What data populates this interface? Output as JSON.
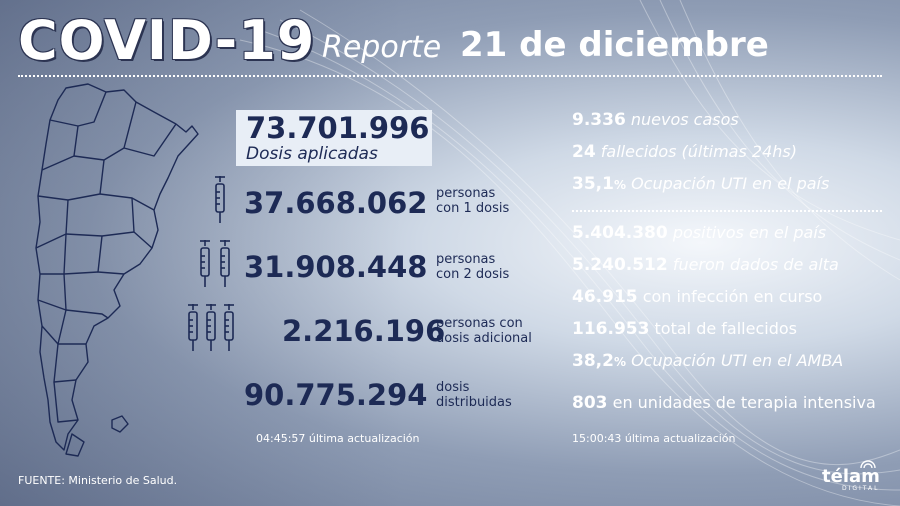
{
  "header": {
    "title": "COVID-19",
    "report_label": "Reporte",
    "date": "21 de diciembre"
  },
  "vaccination": {
    "total": {
      "value": "73.701.996",
      "label": "Dosis aplicadas"
    },
    "first_dose": {
      "value": "37.668.062",
      "label_line1": "personas",
      "label_line2": "con 1 dosis"
    },
    "second_dose": {
      "value": "31.908.448",
      "label_line1": "personas",
      "label_line2": "con 2 dosis"
    },
    "additional_dose": {
      "value": "2.216.196",
      "label_line1": "personas con",
      "label_line2": "dosis adicional"
    },
    "distributed": {
      "value": "90.775.294",
      "label_line1": "dosis",
      "label_line2": "distribuidas"
    },
    "updated": {
      "time": "04:45:57",
      "label": "última actualización"
    }
  },
  "daily": [
    {
      "value": "9.336",
      "label": "nuevos casos"
    },
    {
      "value": "24",
      "label": "fallecidos (últimas 24hs)"
    },
    {
      "value": "35,1",
      "suffix": "%",
      "label": "Ocupación UTI en el país"
    }
  ],
  "cumulative": [
    {
      "value": "5.404.380",
      "label": "positivos en el país"
    },
    {
      "value": "5.240.512",
      "label": "fueron dados de alta"
    },
    {
      "value": "46.915",
      "label": "con infección en curso"
    },
    {
      "value": "116.953",
      "label": "total de fallecidos"
    },
    {
      "value": "38,2",
      "suffix": "%",
      "label": "Ocupación UTI en el AMBA"
    },
    {
      "value": "803",
      "label": "en unidades de terapia intensiva"
    }
  ],
  "cases_updated": {
    "time": "15:00:43",
    "label": "última actualización"
  },
  "footer": {
    "source": "FUENTE: Ministerio de Salud."
  },
  "logo": {
    "name": "télam",
    "sub": "DIGITAL"
  },
  "icons": {
    "syringe": "syringe-icon",
    "map": "argentina-map"
  },
  "colors": {
    "navy": "#1d2a55",
    "white": "#ffffff",
    "panel": "#e8eef6"
  }
}
